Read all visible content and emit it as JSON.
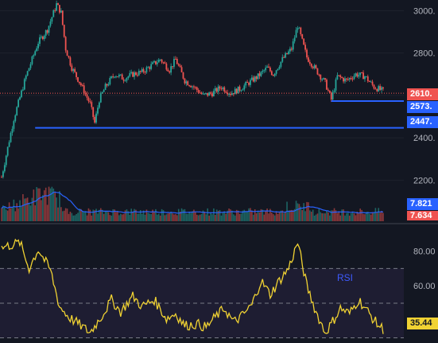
{
  "chart_data": {
    "type": "candlestick",
    "price_axis": {
      "ticks": [
        "3000.",
        "2800.",
        "2600.",
        "2400.",
        "2200."
      ],
      "ylim": [
        2130,
        3050
      ]
    },
    "current_price": "2610.",
    "support_levels": [
      {
        "label": "2573.",
        "value": 2573,
        "color": "#2962ff"
      },
      {
        "label": "2447.",
        "value": 2447,
        "color": "#2962ff"
      }
    ],
    "price_path": [
      {
        "i": 0,
        "p": 2215
      },
      {
        "i": 8,
        "p": 2490
      },
      {
        "i": 16,
        "p": 2690
      },
      {
        "i": 24,
        "p": 2850
      },
      {
        "i": 30,
        "p": 2910
      },
      {
        "i": 36,
        "p": 3030
      },
      {
        "i": 39,
        "p": 2990
      },
      {
        "i": 42,
        "p": 2820
      },
      {
        "i": 46,
        "p": 2730
      },
      {
        "i": 52,
        "p": 2650
      },
      {
        "i": 58,
        "p": 2560
      },
      {
        "i": 61,
        "p": 2470
      },
      {
        "i": 64,
        "p": 2580
      },
      {
        "i": 68,
        "p": 2640
      },
      {
        "i": 74,
        "p": 2700
      },
      {
        "i": 80,
        "p": 2680
      },
      {
        "i": 86,
        "p": 2700
      },
      {
        "i": 92,
        "p": 2710
      },
      {
        "i": 98,
        "p": 2740
      },
      {
        "i": 104,
        "p": 2770
      },
      {
        "i": 110,
        "p": 2720
      },
      {
        "i": 114,
        "p": 2770
      },
      {
        "i": 120,
        "p": 2670
      },
      {
        "i": 126,
        "p": 2640
      },
      {
        "i": 132,
        "p": 2600
      },
      {
        "i": 138,
        "p": 2610
      },
      {
        "i": 144,
        "p": 2640
      },
      {
        "i": 150,
        "p": 2610
      },
      {
        "i": 156,
        "p": 2630
      },
      {
        "i": 162,
        "p": 2660
      },
      {
        "i": 168,
        "p": 2690
      },
      {
        "i": 174,
        "p": 2730
      },
      {
        "i": 178,
        "p": 2700
      },
      {
        "i": 184,
        "p": 2770
      },
      {
        "i": 190,
        "p": 2820
      },
      {
        "i": 194,
        "p": 2930
      },
      {
        "i": 200,
        "p": 2780
      },
      {
        "i": 206,
        "p": 2720
      },
      {
        "i": 212,
        "p": 2660
      },
      {
        "i": 216,
        "p": 2580
      },
      {
        "i": 220,
        "p": 2690
      },
      {
        "i": 226,
        "p": 2670
      },
      {
        "i": 232,
        "p": 2700
      },
      {
        "i": 238,
        "p": 2690
      },
      {
        "i": 244,
        "p": 2640
      },
      {
        "i": 250,
        "p": 2620
      }
    ],
    "volume": {
      "labels": [
        "7.821",
        "7.634"
      ],
      "ma_color": "#2962ff"
    },
    "rsi": {
      "label": "RSI",
      "ticks": [
        "80.00",
        "60.00",
        "40.00"
      ],
      "bands": [
        30,
        50,
        70
      ],
      "ylim": [
        27,
        95
      ],
      "current": "35.44",
      "path": [
        {
          "i": 0,
          "v": 82
        },
        {
          "i": 12,
          "v": 85
        },
        {
          "i": 18,
          "v": 70
        },
        {
          "i": 24,
          "v": 81
        },
        {
          "i": 32,
          "v": 69
        },
        {
          "i": 38,
          "v": 48
        },
        {
          "i": 44,
          "v": 42
        },
        {
          "i": 52,
          "v": 37
        },
        {
          "i": 58,
          "v": 33
        },
        {
          "i": 66,
          "v": 43
        },
        {
          "i": 72,
          "v": 52
        },
        {
          "i": 78,
          "v": 45
        },
        {
          "i": 86,
          "v": 54
        },
        {
          "i": 92,
          "v": 48
        },
        {
          "i": 100,
          "v": 52
        },
        {
          "i": 108,
          "v": 41
        },
        {
          "i": 114,
          "v": 44
        },
        {
          "i": 120,
          "v": 37
        },
        {
          "i": 128,
          "v": 38
        },
        {
          "i": 134,
          "v": 36
        },
        {
          "i": 140,
          "v": 42
        },
        {
          "i": 146,
          "v": 47
        },
        {
          "i": 152,
          "v": 39
        },
        {
          "i": 158,
          "v": 43
        },
        {
          "i": 164,
          "v": 49
        },
        {
          "i": 170,
          "v": 63
        },
        {
          "i": 176,
          "v": 55
        },
        {
          "i": 182,
          "v": 63
        },
        {
          "i": 188,
          "v": 70
        },
        {
          "i": 194,
          "v": 85
        },
        {
          "i": 200,
          "v": 60
        },
        {
          "i": 206,
          "v": 45
        },
        {
          "i": 212,
          "v": 33
        },
        {
          "i": 216,
          "v": 38
        },
        {
          "i": 222,
          "v": 47
        },
        {
          "i": 228,
          "v": 44
        },
        {
          "i": 234,
          "v": 52
        },
        {
          "i": 240,
          "v": 45
        },
        {
          "i": 246,
          "v": 38
        },
        {
          "i": 250,
          "v": 35
        }
      ]
    },
    "colors": {
      "up": "#26a69a",
      "down": "#ef5350",
      "rsi_line": "#f0d233",
      "rsi_band": "#7e57c2",
      "support": "#2962ff"
    }
  }
}
